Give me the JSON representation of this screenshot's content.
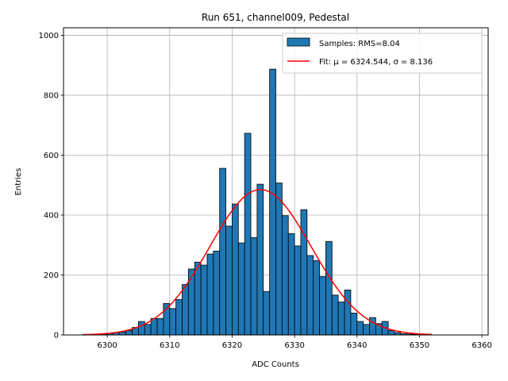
{
  "chart_data": {
    "type": "bar",
    "title": "Run 651, channel009, Pedestal",
    "xlabel": "ADC Counts",
    "ylabel": "Entries",
    "xlim": [
      6293,
      6361
    ],
    "ylim": [
      0,
      1025
    ],
    "xticks": [
      6300,
      6310,
      6320,
      6330,
      6340,
      6350,
      6360
    ],
    "yticks": [
      0,
      200,
      400,
      600,
      800,
      1000
    ],
    "grid": true,
    "legend_position": "top-right",
    "bin_width": 1,
    "series": [
      {
        "name": "Samples: RMS=8.04",
        "kind": "histogram",
        "color": "#1f77b4",
        "edge_color": "#000000",
        "bin_starts": [
          6298,
          6299,
          6300,
          6301,
          6302,
          6303,
          6304,
          6305,
          6306,
          6307,
          6308,
          6309,
          6310,
          6311,
          6312,
          6313,
          6314,
          6315,
          6316,
          6317,
          6318,
          6319,
          6320,
          6321,
          6322,
          6323,
          6324,
          6325,
          6326,
          6327,
          6328,
          6329,
          6330,
          6331,
          6332,
          6333,
          6334,
          6335,
          6336,
          6337,
          6338,
          6339,
          6340,
          6341,
          6342,
          6343,
          6344,
          6345,
          6346,
          6347,
          6348,
          6349
        ],
        "values": [
          2,
          3,
          5,
          8,
          10,
          15,
          25,
          45,
          35,
          55,
          55,
          105,
          88,
          118,
          168,
          220,
          243,
          233,
          270,
          280,
          556,
          363,
          437,
          307,
          673,
          325,
          503,
          145,
          887,
          507,
          398,
          338,
          297,
          418,
          265,
          248,
          195,
          312,
          133,
          110,
          150,
          73,
          45,
          35,
          58,
          38,
          45,
          15,
          8,
          4,
          3,
          2
        ]
      },
      {
        "name": "Fit: μ = 6324.544, σ = 8.136",
        "kind": "gaussian",
        "color": "#ff0000",
        "mu": 6324.544,
        "sigma": 8.136,
        "amplitude": 485,
        "x_range": [
          6296,
          6352
        ]
      }
    ]
  }
}
